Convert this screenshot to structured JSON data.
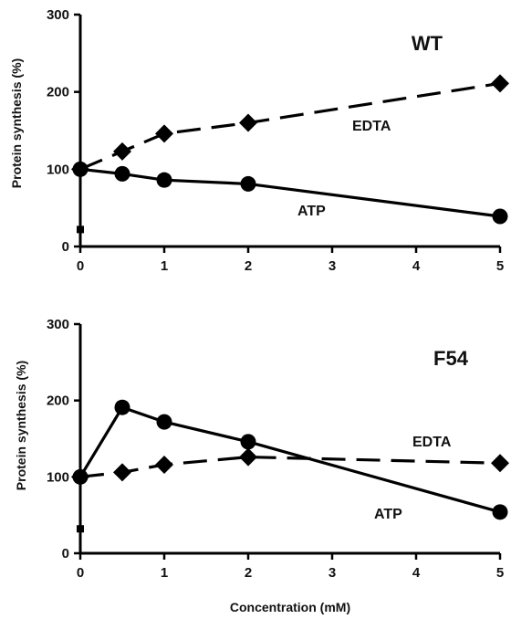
{
  "chart_data": [
    {
      "type": "line",
      "title": "WT",
      "xlabel": "",
      "ylabel": "Protein synthesis (%)",
      "x_ticks": [
        "0",
        "1",
        "2",
        "3",
        "4",
        "5"
      ],
      "y_ticks": [
        "0",
        "100",
        "200",
        "300"
      ],
      "xlim": [
        0,
        5
      ],
      "ylim": [
        0,
        300
      ],
      "grid": false,
      "series": [
        {
          "name": "EDTA",
          "style": "dashed",
          "marker": "diamond",
          "x": [
            0,
            0.5,
            1,
            2,
            5
          ],
          "y": [
            100,
            123,
            146,
            160,
            211
          ]
        },
        {
          "name": "ATP",
          "style": "solid",
          "marker": "circle",
          "x": [
            0,
            0.5,
            1,
            2,
            5
          ],
          "y": [
            100,
            94,
            86,
            81,
            39
          ]
        }
      ],
      "extra_points": [
        {
          "x": 0,
          "y": 22,
          "marker": "square"
        }
      ]
    },
    {
      "type": "line",
      "title": "F54",
      "xlabel": "Concentration (mM)",
      "ylabel": "Protein synthesis (%)",
      "x_ticks": [
        "0",
        "1",
        "2",
        "3",
        "4",
        "5"
      ],
      "y_ticks": [
        "0",
        "100",
        "200",
        "300"
      ],
      "xlim": [
        0,
        5
      ],
      "ylim": [
        0,
        300
      ],
      "grid": false,
      "series": [
        {
          "name": "EDTA",
          "style": "dashed",
          "marker": "diamond",
          "x": [
            0,
            0.5,
            1,
            2,
            5
          ],
          "y": [
            100,
            106,
            116,
            126,
            118
          ]
        },
        {
          "name": "ATP",
          "style": "solid",
          "marker": "circle",
          "x": [
            0,
            0.5,
            1,
            2,
            5
          ],
          "y": [
            100,
            191,
            172,
            146,
            54
          ]
        }
      ],
      "extra_points": [
        {
          "x": 0,
          "y": 32,
          "marker": "square"
        }
      ]
    }
  ]
}
